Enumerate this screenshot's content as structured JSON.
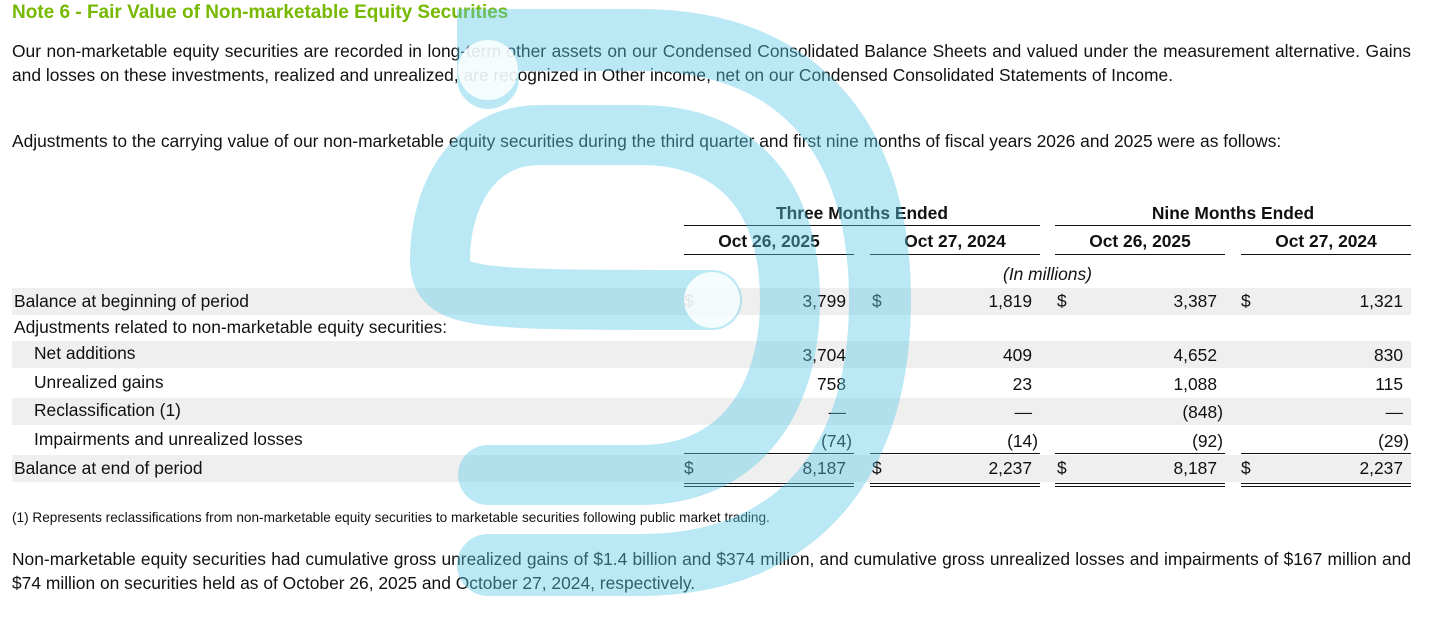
{
  "title": "Note 6 - Fair Value of Non-marketable Equity Securities",
  "paragraphs": {
    "intro": "Our non-marketable equity securities are recorded in long-term other assets on our Condensed Consolidated Balance Sheets and valued under the measurement alternative. Gains and losses on these investments, realized and unrealized, are recognized in Other income, net on our Condensed Consolidated Statements of Income.",
    "adjustments": "Adjustments to the carrying value of our non-marketable equity securities during the third quarter and first nine months of fiscal years 2026 and 2025 were as follows:",
    "closing": "Non-marketable equity securities had cumulative gross unrealized gains of $1.4 billion and $374 million, and cumulative gross unrealized losses and impairments of $167 million and $74 million on securities held as of October 26, 2025 and October 27, 2024, respectively."
  },
  "table": {
    "group_headers": [
      "Three Months Ended",
      "Nine Months Ended"
    ],
    "column_headers": [
      "Oct 26, 2025",
      "Oct 27, 2024",
      "Oct 26, 2025",
      "Oct 27, 2024"
    ],
    "units": "(In millions)",
    "currency": "$",
    "rows": [
      {
        "label": "Balance at beginning of period",
        "values": [
          "3,799",
          "1,819",
          "3,387",
          "1,321"
        ]
      },
      {
        "label": "Adjustments related to non-marketable equity securities:",
        "values": [
          "",
          "",
          "",
          ""
        ]
      },
      {
        "label": "Net additions",
        "values": [
          "3,704",
          "409",
          "4,652",
          "830"
        ]
      },
      {
        "label": "Unrealized gains",
        "values": [
          "758",
          "23",
          "1,088",
          "115"
        ]
      },
      {
        "label": "Reclassification (1)",
        "values": [
          "—",
          "—",
          "(848)",
          "—"
        ]
      },
      {
        "label": "Impairments and unrealized losses",
        "values": [
          "(74)",
          "(14)",
          "(92)",
          "(29)"
        ]
      },
      {
        "label": "Balance at end of period",
        "values": [
          "8,187",
          "2,237",
          "8,187",
          "2,237"
        ]
      }
    ]
  },
  "footnote": "(1) Represents reclassifications from non-marketable equity securities to marketable securities following public market trading.",
  "colors": {
    "title": "#76b900",
    "watermark": "#5cc8e8",
    "row_shade": "#efefef"
  }
}
